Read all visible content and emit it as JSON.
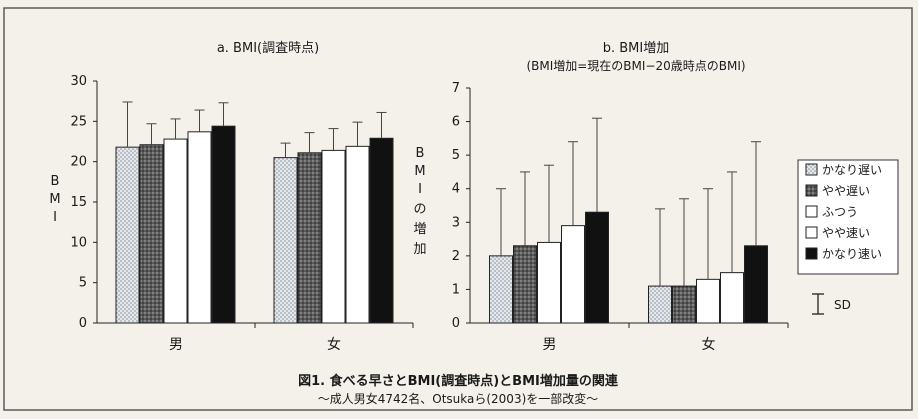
{
  "colors": {
    "background": "#f4f1ea",
    "frame": "#555555",
    "series_fills": [
      "#d9dde3",
      "#6e6e6e",
      "#ffffff",
      "#ffffff",
      "#111111"
    ],
    "series_patterns": [
      "dotted",
      "dark-dotted",
      "none",
      "none",
      "solid"
    ]
  },
  "chart_data": [
    {
      "type": "bar",
      "title": "a. BMI(調査時点)",
      "subtitle": "",
      "ylabel": "BMI",
      "ylim": [
        0,
        30
      ],
      "yticks": [
        0,
        5,
        10,
        15,
        20,
        25,
        30
      ],
      "categories": [
        "男",
        "女"
      ],
      "series": [
        {
          "name": "かなり遅い",
          "values": [
            21.8,
            20.5
          ],
          "sd": [
            5.6,
            1.8
          ]
        },
        {
          "name": "やや遅い",
          "values": [
            22.1,
            21.1
          ],
          "sd": [
            2.6,
            2.5
          ]
        },
        {
          "name": "ふつう",
          "values": [
            22.8,
            21.4
          ],
          "sd": [
            2.5,
            2.7
          ]
        },
        {
          "name": "やや速い",
          "values": [
            23.7,
            21.9
          ],
          "sd": [
            2.7,
            3.0
          ]
        },
        {
          "name": "かなり速い",
          "values": [
            24.4,
            22.9
          ],
          "sd": [
            2.9,
            3.2
          ]
        }
      ],
      "grid": false
    },
    {
      "type": "bar",
      "title": "b. BMI増加",
      "subtitle": "(BMI増加=現在のBMI−20歳時点のBMI)",
      "ylabel": "BMIの増加",
      "ylim": [
        0,
        7
      ],
      "yticks": [
        0,
        1,
        2,
        3,
        4,
        5,
        6,
        7
      ],
      "categories": [
        "男",
        "女"
      ],
      "series": [
        {
          "name": "かなり遅い",
          "values": [
            2.0,
            1.1
          ],
          "sd": [
            2.0,
            2.3
          ]
        },
        {
          "name": "やや遅い",
          "values": [
            2.3,
            1.1
          ],
          "sd": [
            2.2,
            2.6
          ]
        },
        {
          "name": "ふつう",
          "values": [
            2.4,
            1.3
          ],
          "sd": [
            2.3,
            2.7
          ]
        },
        {
          "name": "やや速い",
          "values": [
            2.9,
            1.5
          ],
          "sd": [
            2.5,
            3.0
          ]
        },
        {
          "name": "かなり速い",
          "values": [
            3.3,
            2.3
          ],
          "sd": [
            2.8,
            3.1
          ]
        }
      ],
      "grid": false
    }
  ],
  "legend": {
    "items": [
      "かなり遅い",
      "やや遅い",
      "ふつう",
      "やや速い",
      "かなり速い"
    ],
    "placement": "right",
    "sd_label": "SD"
  },
  "caption": {
    "line1": "図1. 食べる早さとBMI(調査時点)とBMI増加量の関連",
    "line2": "〜成人男女4742名、Otsukaら(2003)を一部改変〜"
  }
}
